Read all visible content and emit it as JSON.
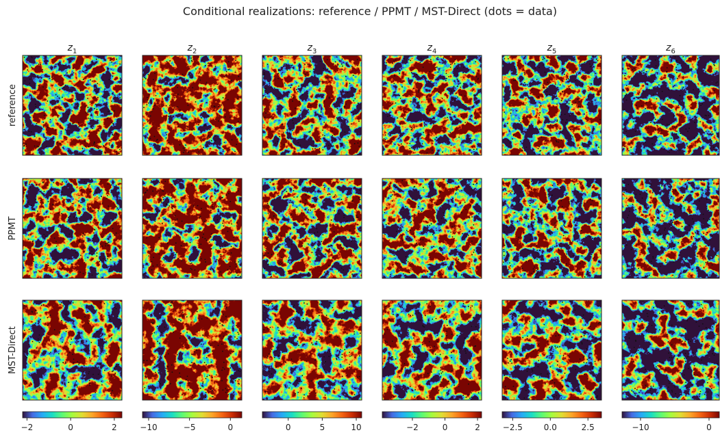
{
  "chart_data": {
    "type": "heatmap",
    "title": "Conditional realizations: reference / PPMT / MST-Direct (dots = data)",
    "colormap": "turbo",
    "row_labels": [
      "reference",
      "PPMT",
      "MST-Direct"
    ],
    "columns": [
      {
        "symbol": "z",
        "index": "1",
        "lim": [
          -2.2,
          2.35
        ],
        "ticks": [
          {
            "value": -2,
            "label": "−2"
          },
          0,
          2
        ]
      },
      {
        "symbol": "z",
        "index": "2",
        "lim": [
          -10.75,
          1.4
        ],
        "ticks": [
          {
            "value": -10,
            "label": "−10"
          },
          {
            "value": -5,
            "label": "−5"
          },
          0
        ]
      },
      {
        "symbol": "z",
        "index": "3",
        "lim": [
          -3.8,
          10.8
        ],
        "ticks": [
          0,
          5,
          10
        ]
      },
      {
        "symbol": "z",
        "index": "4",
        "lim": [
          -3.85,
          2.25
        ],
        "ticks": [
          {
            "value": -2,
            "label": "−2"
          },
          0,
          2
        ]
      },
      {
        "symbol": "z",
        "index": "5",
        "lim": [
          -3.2,
          3.4
        ],
        "ticks": [
          {
            "value": -2.5,
            "label": "−2.5"
          },
          {
            "value": 0,
            "label": "0.0"
          },
          2.5
        ]
      },
      {
        "symbol": "z",
        "index": "6",
        "lim": [
          -12.7,
          1.5
        ],
        "ticks": [
          {
            "value": -10,
            "label": "−10"
          },
          0
        ]
      }
    ]
  }
}
